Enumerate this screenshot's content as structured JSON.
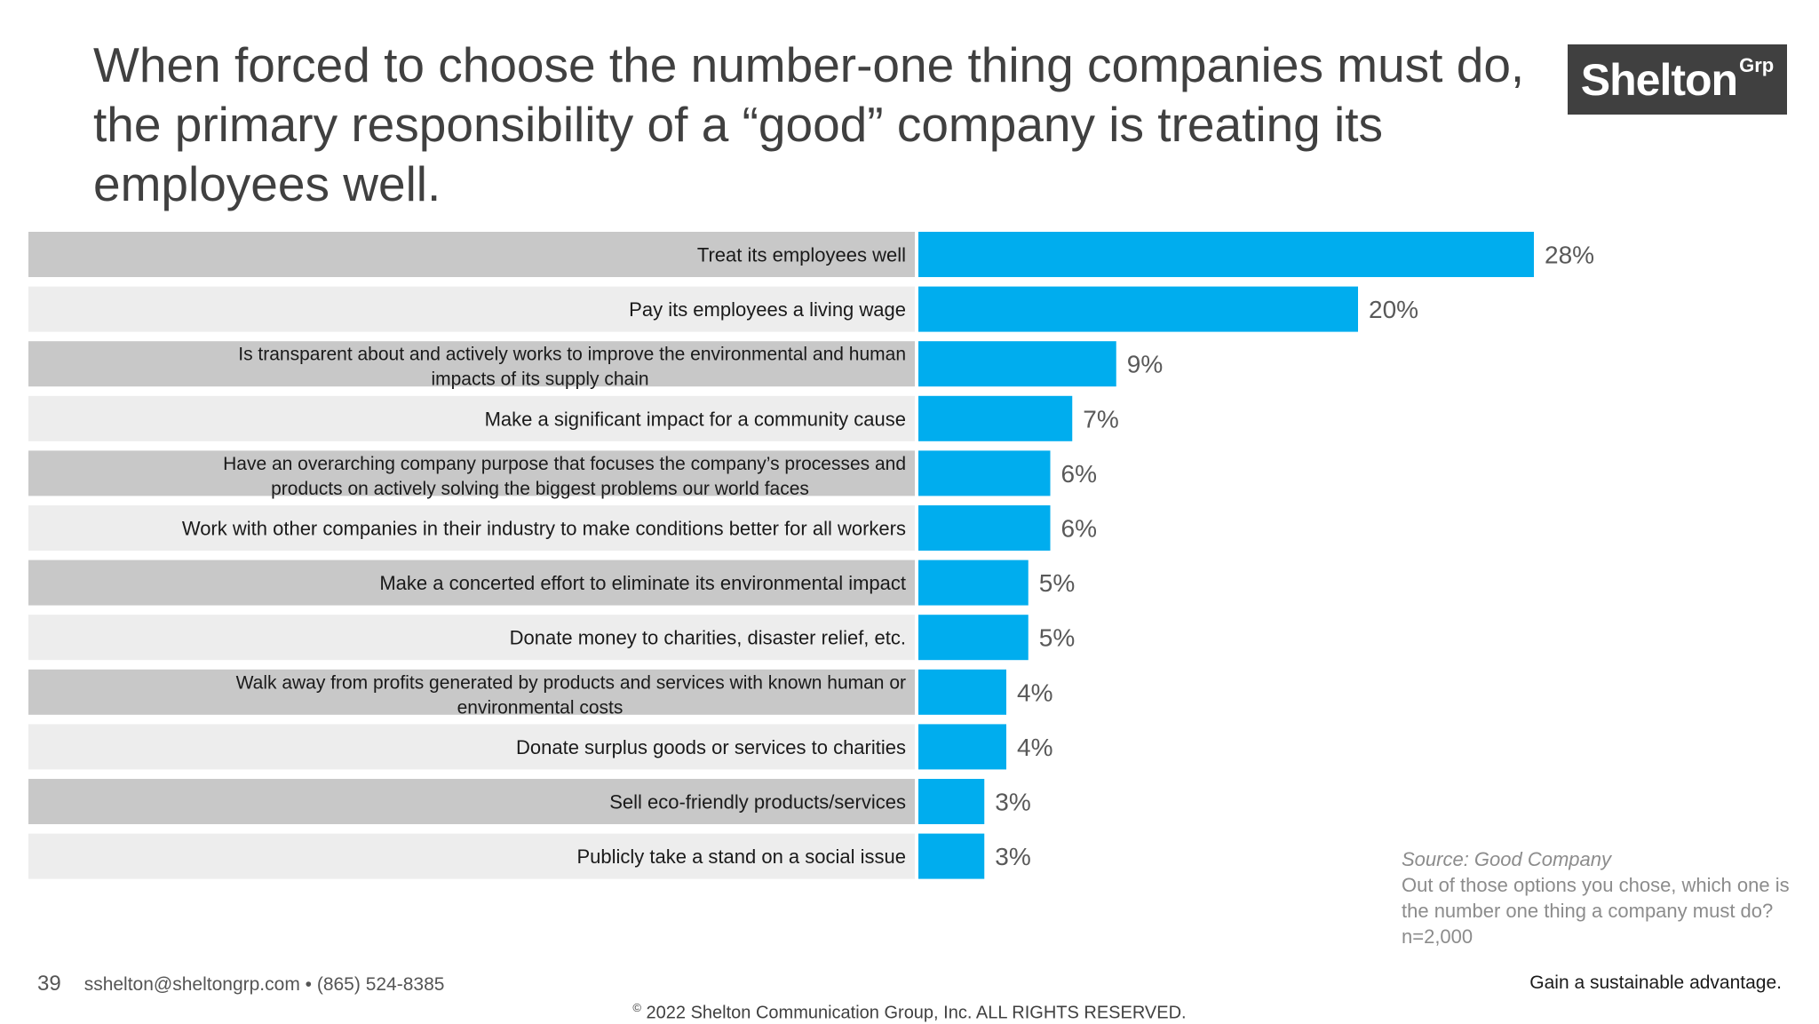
{
  "header": {
    "title": "When forced to choose the number-one thing companies must do, the primary responsibility of a “good” company is treating its employees well."
  },
  "logo": {
    "name": "Shelton",
    "superscript": "Grp"
  },
  "colors": {
    "bar": "#00adee",
    "row_dark": "#c8c8c8",
    "row_light": "#ededed",
    "value_label": "#595959"
  },
  "chart_data": {
    "type": "bar",
    "orientation": "horizontal",
    "unit": "%",
    "xlim": [
      0,
      28
    ],
    "categories": [
      [
        "Treat its employees well"
      ],
      [
        "Pay its employees a living wage"
      ],
      [
        "Is transparent about and actively works to improve the environmental and human",
        "impacts of its supply chain"
      ],
      [
        "Make a significant impact for a community cause"
      ],
      [
        "Have an overarching company purpose that focuses the company’s processes and",
        "products on actively solving the biggest problems our world faces"
      ],
      [
        "Work with other companies in their industry to make conditions better for all workers"
      ],
      [
        "Make a concerted effort to eliminate its environmental impact"
      ],
      [
        "Donate money to charities, disaster relief, etc."
      ],
      [
        "Walk away from profits generated by products and services with known human or",
        "environmental costs"
      ],
      [
        "Donate surplus goods or services to charities"
      ],
      [
        "Sell eco-friendly products/services"
      ],
      [
        "Publicly take a stand on a social issue"
      ]
    ],
    "values": [
      28,
      20,
      9,
      7,
      6,
      6,
      5,
      5,
      4,
      4,
      3,
      3
    ],
    "value_labels": [
      "28%",
      "20%",
      "9%",
      "7%",
      "6%",
      "6%",
      "5%",
      "5%",
      "4%",
      "4%",
      "3%",
      "3%"
    ]
  },
  "source": {
    "label": "Source: Good Company",
    "note": "Out of those options you chose, which one is the number one thing a company must do? n=2,000"
  },
  "footer": {
    "page_number": "39",
    "contact": "sshelton@sheltongrp.com • (865) 524-8385",
    "tagline": "Gain a sustainable advantage.",
    "copyright_symbol": "©",
    "copyright": "2022 Shelton Communication Group, Inc.  ALL RIGHTS RESERVED."
  }
}
